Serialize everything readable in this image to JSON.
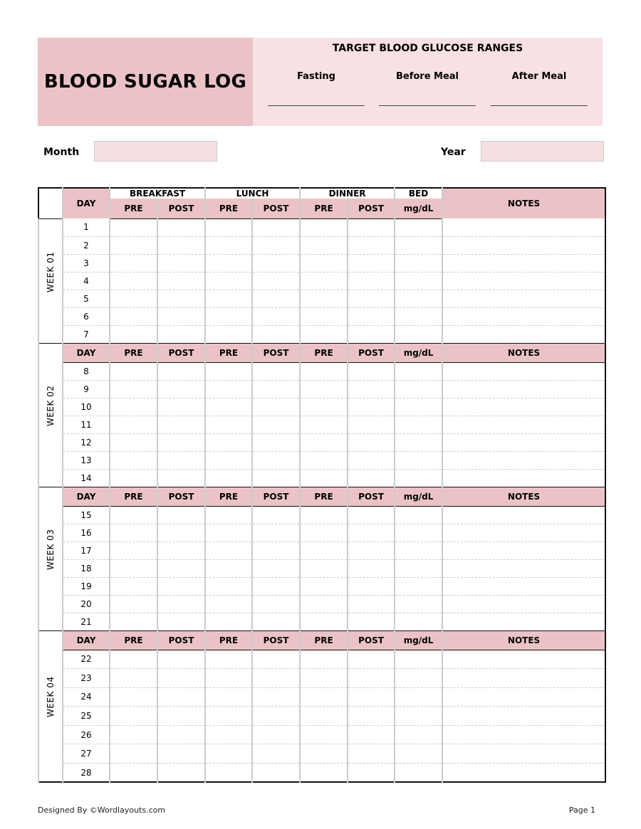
{
  "title": "BLOOD SUGAR LOG",
  "target": {
    "title": "TARGET BLOOD GLUCOSE RANGES",
    "columns": [
      "Fasting",
      "Before Meal",
      "After Meal"
    ]
  },
  "month_label": "Month",
  "year_label": "Year",
  "header": {
    "day": "DAY",
    "meals": [
      "BREAKFAST",
      "LUNCH",
      "DINNER",
      "BED"
    ],
    "pre": "PRE",
    "post": "POST",
    "unit": "mg/dL",
    "notes": "NOTES"
  },
  "weeks": [
    {
      "label": "WEEK 01",
      "days": [
        1,
        2,
        3,
        4,
        5,
        6,
        7
      ]
    },
    {
      "label": "WEEK 02",
      "days": [
        8,
        9,
        10,
        11,
        12,
        13,
        14
      ]
    },
    {
      "label": "WEEK 03",
      "days": [
        15,
        16,
        17,
        18,
        19,
        20,
        21
      ]
    },
    {
      "label": "WEEK 04",
      "days": [
        22,
        23,
        24,
        25,
        26,
        27,
        28
      ]
    }
  ],
  "footer": {
    "credit": "Designed By ©Wordlayouts.com",
    "page": "Page 1"
  },
  "colors": {
    "header_pink": "#ebc3c6",
    "light_pink": "#f7e1e3",
    "field_pink": "#f5dfe1"
  }
}
